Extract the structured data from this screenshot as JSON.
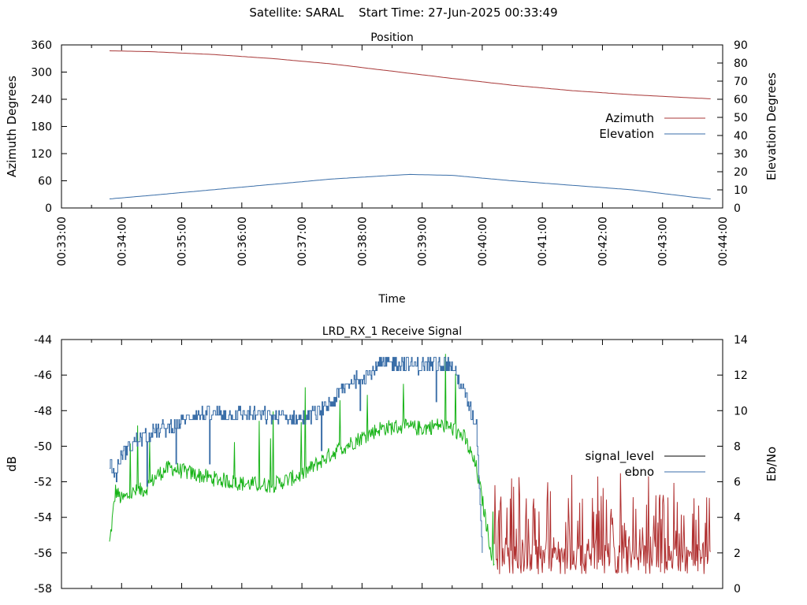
{
  "page": {
    "title": "Satellite: SARAL    Start Time: 27-Jun-2025 00:33:49"
  },
  "colors": {
    "azimuth": "#a83838",
    "elevation": "#3a6ea8",
    "signal_level": "#000000",
    "ebno": "#3a6ea8",
    "signal_trace_green": "#17b317",
    "signal_trace_red": "#b03030"
  },
  "chart_data": [
    {
      "type": "line",
      "title": "Position",
      "xlabel": "Time",
      "ylabel": "Azimuth Degrees",
      "y2label": "Elevation Degrees",
      "x_ticks": [
        "00:33:00",
        "00:34:00",
        "00:35:00",
        "00:36:00",
        "00:37:00",
        "00:38:00",
        "00:39:00",
        "00:40:00",
        "00:41:00",
        "00:42:00",
        "00:43:00",
        "00:44:00"
      ],
      "xlim_minutes": [
        33,
        44
      ],
      "ylim": [
        0,
        360
      ],
      "y_ticks": [
        "0",
        "60",
        "120",
        "180",
        "240",
        "300",
        "360"
      ],
      "y2lim": [
        0,
        90
      ],
      "y2_ticks": [
        "0",
        "10",
        "20",
        "30",
        "40",
        "50",
        "60",
        "70",
        "80",
        "90"
      ],
      "grid": false,
      "legend_position": "right",
      "series": [
        {
          "name": "Azimuth",
          "axis": "y",
          "x_minutes": [
            33.8,
            34.5,
            35.5,
            36.5,
            37.5,
            38.5,
            39.5,
            40.5,
            41.5,
            42.5,
            43.5,
            43.8
          ],
          "values": [
            347,
            345,
            339,
            330,
            318,
            302,
            286,
            271,
            259,
            250,
            243,
            241
          ]
        },
        {
          "name": "Elevation",
          "axis": "y2",
          "x_minutes": [
            33.8,
            34.5,
            35.5,
            36.5,
            37.5,
            38.5,
            38.8,
            39.5,
            40.5,
            41.5,
            42.5,
            43.5,
            43.8
          ],
          "values": [
            5,
            7,
            10,
            13,
            16,
            18,
            18.5,
            18,
            15,
            12.5,
            10,
            6,
            5
          ]
        }
      ]
    },
    {
      "type": "line",
      "title": "LRD_RX_1 Receive Signal",
      "ylabel": "dB",
      "y2label": "Eb/No",
      "xlim_minutes": [
        33,
        44
      ],
      "ylim": [
        -58,
        -44
      ],
      "y_ticks": [
        "-58",
        "-56",
        "-54",
        "-52",
        "-50",
        "-48",
        "-46",
        "-44"
      ],
      "y2lim": [
        0,
        14
      ],
      "y2_ticks": [
        "0",
        "2",
        "4",
        "6",
        "8",
        "10",
        "12",
        "14"
      ],
      "grid": false,
      "legend_position": "right",
      "series": [
        {
          "name": "signal_level",
          "axis": "y",
          "x_minutes": [
            33.8,
            33.9,
            34.0,
            34.2,
            34.4,
            34.6,
            34.8,
            35.0,
            35.5,
            36.0,
            36.5,
            37.0,
            37.5,
            38.0,
            38.3,
            38.6,
            39.0,
            39.3,
            39.5,
            39.7,
            39.9,
            40.0,
            40.1,
            40.2,
            40.5,
            41.0,
            41.5,
            42.0,
            42.5,
            43.0,
            43.5,
            43.8
          ],
          "values": [
            -55.5,
            -52.5,
            -53.0,
            -52.6,
            -52.4,
            -51.6,
            -51.2,
            -51.4,
            -51.8,
            -52.1,
            -52.2,
            -51.6,
            -50.4,
            -49.5,
            -49.0,
            -48.9,
            -49.0,
            -48.8,
            -49.0,
            -49.5,
            -51.2,
            -53.0,
            -55.0,
            -56.8,
            -55.5,
            -56.0,
            -55.4,
            -56.2,
            -55.6,
            -56.0,
            -55.8,
            -57.5
          ]
        },
        {
          "name": "ebno",
          "axis": "y2",
          "x_minutes": [
            33.8,
            33.9,
            34.0,
            34.2,
            34.4,
            34.6,
            34.8,
            35.0,
            35.2,
            35.5,
            36.0,
            36.5,
            37.0,
            37.3,
            37.5,
            37.7,
            37.9,
            38.1,
            38.3,
            38.6,
            39.0,
            39.3,
            39.5,
            39.7,
            39.8,
            39.9,
            40.0
          ],
          "values": [
            7,
            6.3,
            7.6,
            8.2,
            8.6,
            8.9,
            9.1,
            9.4,
            9.8,
            9.8,
            9.8,
            9.7,
            9.5,
            10,
            10.5,
            11.3,
            11.8,
            12.1,
            12.6,
            12.7,
            12.5,
            12.7,
            12.5,
            11,
            10,
            9.3,
            2
          ]
        }
      ]
    }
  ]
}
